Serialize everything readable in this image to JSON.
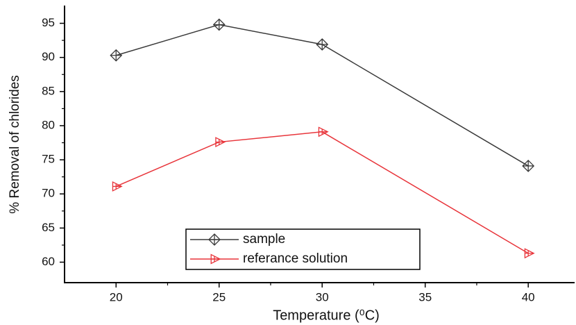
{
  "chart_data": {
    "type": "line",
    "x_label": "Temperature (⁰C)",
    "y_label": "% Removal of chlorides",
    "x": [
      20,
      25,
      30,
      40
    ],
    "series": [
      {
        "name": "sample",
        "color": "#3a3a3a",
        "marker": "diamond",
        "values": [
          90.3,
          94.8,
          91.9,
          74.1
        ]
      },
      {
        "name": "referance solution",
        "color": "#e8343a",
        "marker": "triangle-right",
        "values": [
          71.1,
          77.6,
          79.1,
          61.3
        ]
      }
    ],
    "xlim": [
      17.5,
      42.25
    ],
    "xticks": [
      20,
      25,
      30,
      35,
      40
    ],
    "ylim": [
      57,
      97.6
    ],
    "yticks": [
      60,
      65,
      70,
      75,
      80,
      85,
      90,
      95
    ],
    "grid": false,
    "legend": "bottom-center"
  }
}
